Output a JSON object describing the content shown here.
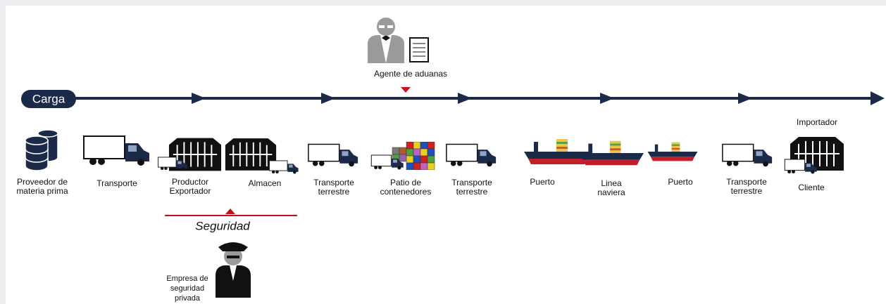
{
  "timeline": {
    "label": "Carga"
  },
  "customs": {
    "label": "Agente de aduanas"
  },
  "stages": [
    {
      "label": [
        "Proveedor de",
        "materia prima"
      ]
    },
    {
      "label": [
        "Transporte"
      ]
    },
    {
      "label": [
        "Productor",
        "Exportador"
      ]
    },
    {
      "label": [
        "Almacen"
      ]
    },
    {
      "label": [
        "Transporte",
        "terrestre"
      ]
    },
    {
      "label": [
        "Patio de",
        "contenedores"
      ]
    },
    {
      "label": [
        "Transporte",
        "terrestre"
      ]
    },
    {
      "label": [
        "Puerto"
      ]
    },
    {
      "label": [
        "Linea",
        "naviera"
      ]
    },
    {
      "label": [
        "Puerto"
      ]
    },
    {
      "label": [
        "Transporte",
        "terrestre"
      ]
    },
    {
      "label": [
        "Cliente"
      ]
    }
  ],
  "importer": {
    "label": "Importador"
  },
  "security": {
    "label": "Seguridad",
    "provider": [
      "Empresa de",
      "seguridad",
      "privada"
    ]
  }
}
